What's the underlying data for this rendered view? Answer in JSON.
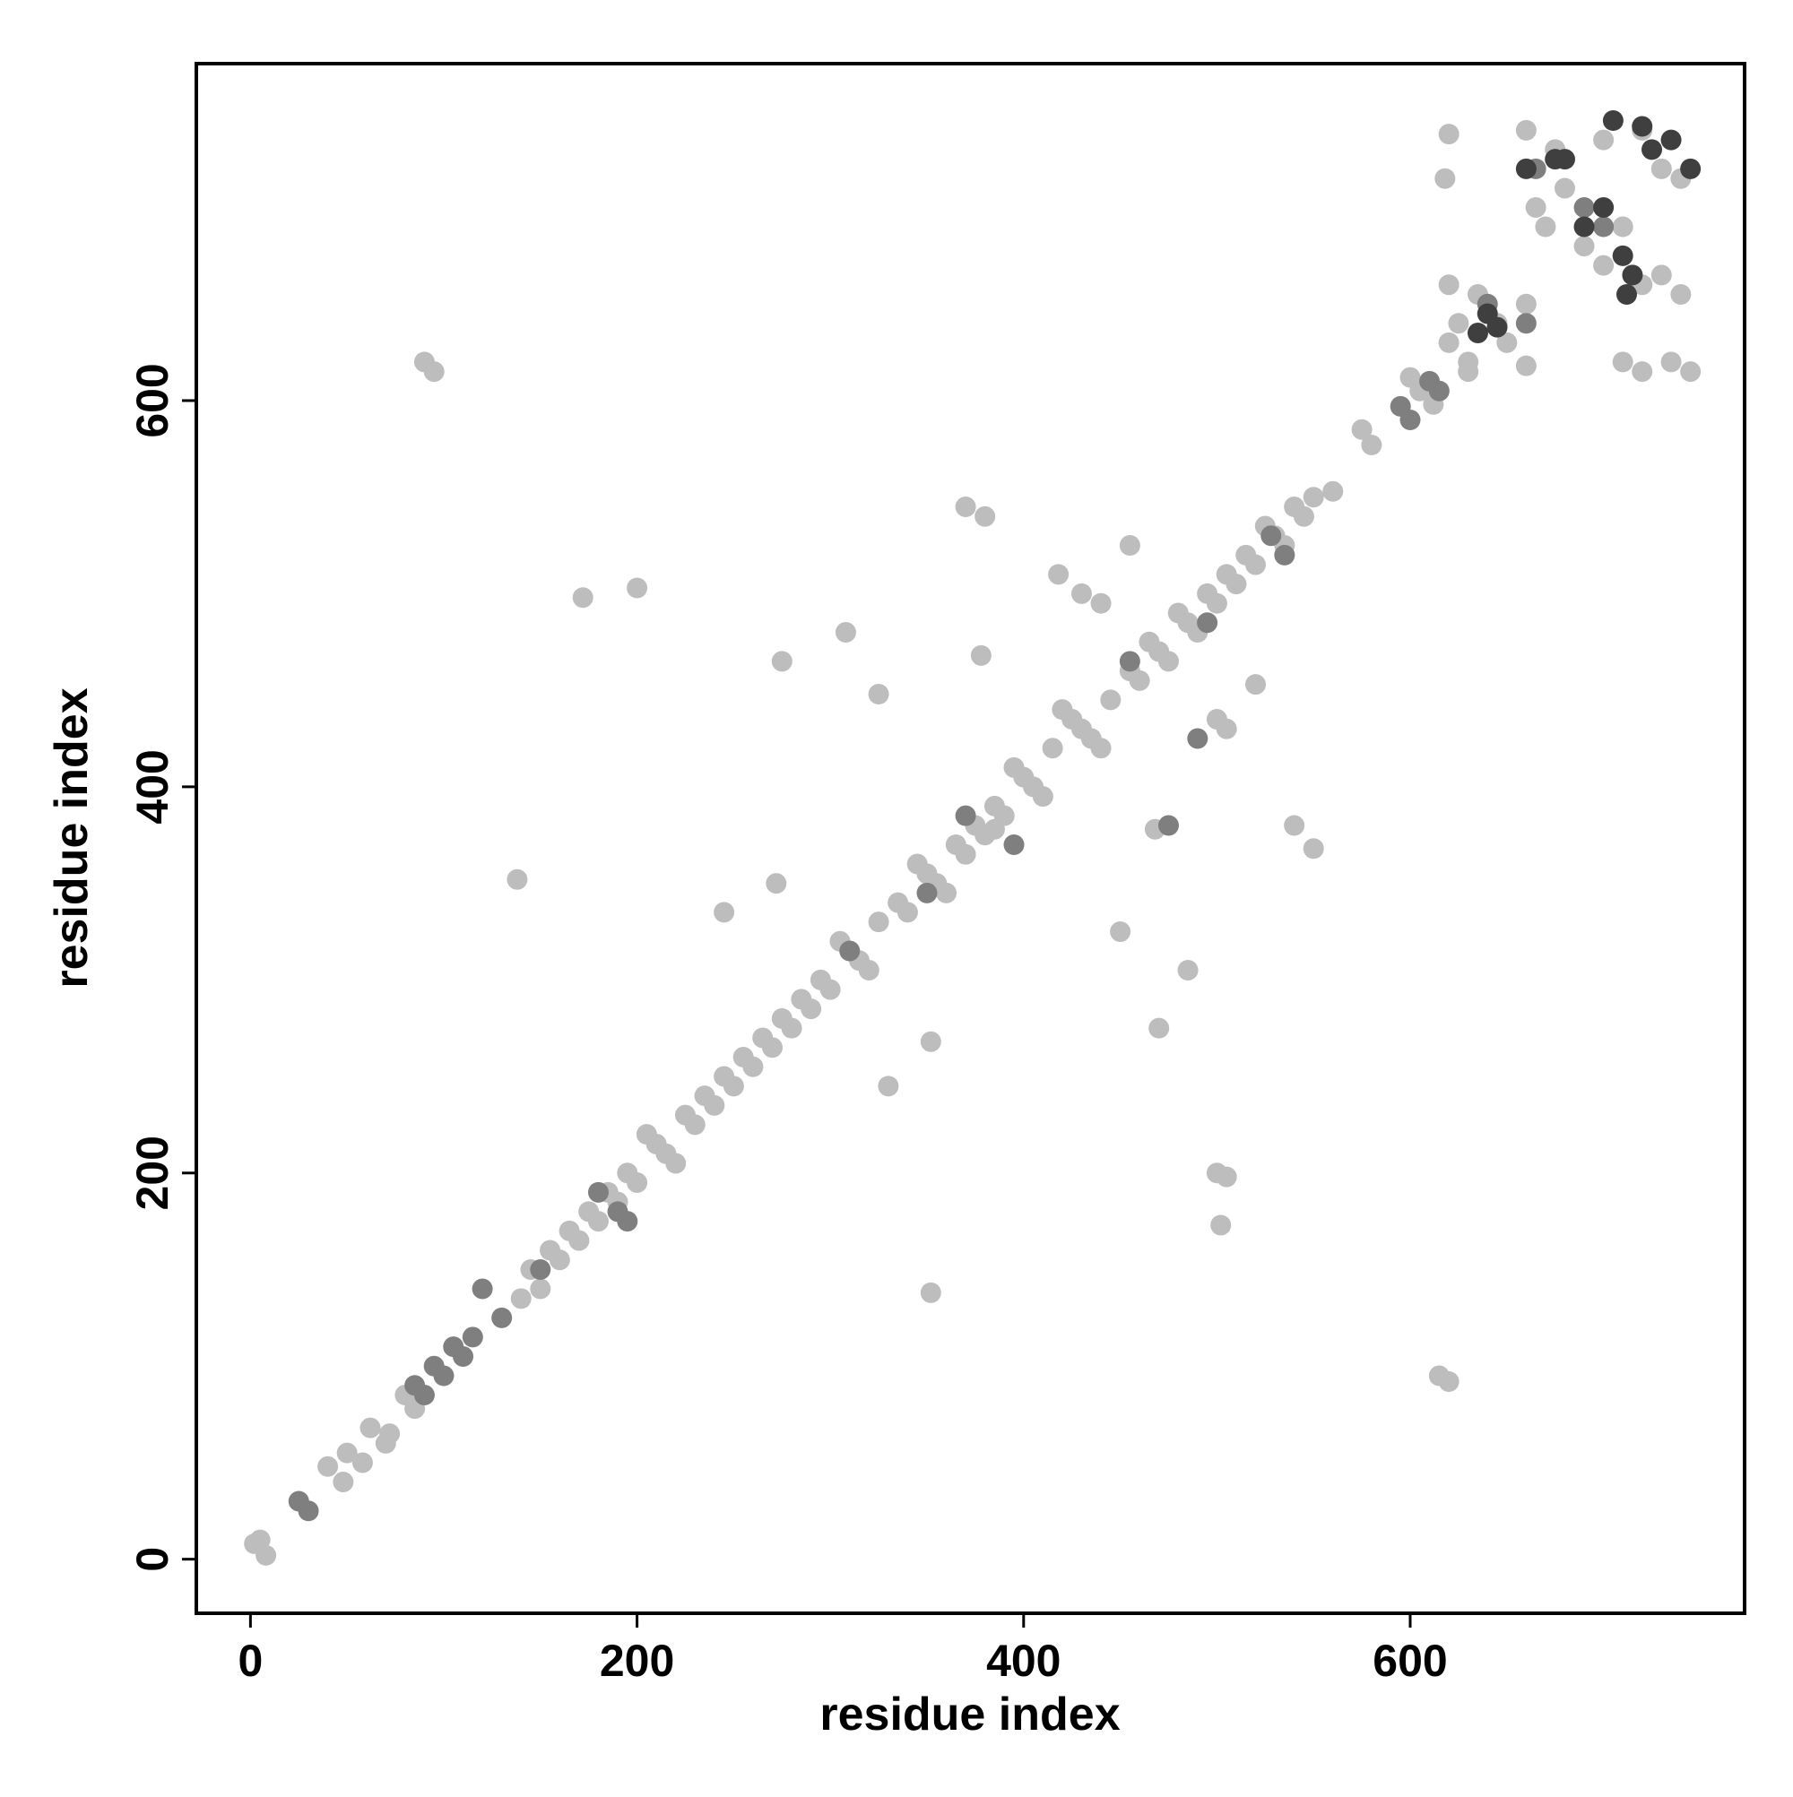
{
  "chart_data": {
    "type": "scatter",
    "xlabel": "residue index",
    "ylabel": "residue index",
    "xlim": [
      -28,
      773
    ],
    "ylim": [
      -28,
      774.5
    ],
    "xticks": [
      0,
      200,
      400,
      600
    ],
    "yticks": [
      0,
      200,
      400,
      600
    ],
    "series": [
      {
        "color": "#bdbdbd",
        "x": [
          2,
          8,
          5,
          40,
          48,
          50,
          58,
          62,
          70,
          72,
          80,
          85,
          140,
          145,
          150,
          155,
          160,
          165,
          170,
          175,
          180,
          185,
          190,
          195,
          200,
          205,
          210,
          215,
          220,
          225,
          230,
          235,
          240,
          245,
          250,
          255,
          260,
          265,
          270,
          275,
          280,
          285,
          290,
          295,
          300,
          305,
          310,
          315,
          320,
          325,
          335,
          340,
          345,
          350,
          355,
          360,
          365,
          370,
          375,
          380,
          385,
          390,
          395,
          400,
          405,
          410,
          415,
          420,
          425,
          430,
          435,
          440,
          445,
          455,
          460,
          465,
          470,
          475,
          480,
          485,
          490,
          495,
          500,
          505,
          510,
          515,
          520,
          525,
          530,
          535,
          540,
          545,
          550,
          560,
          575,
          580,
          600,
          605,
          612,
          620,
          625,
          630,
          635,
          645,
          650,
          660,
          665,
          670,
          680,
          690,
          700,
          710,
          720,
          730,
          740,
          660,
          675,
          700,
          720,
          730,
          740,
          620,
          618,
          620,
          615,
          620,
          90,
          95,
          352,
          138,
          500,
          505,
          200,
          172,
          502,
          380,
          370,
          378,
          468,
          550,
          540,
          330,
          352,
          470,
          485,
          450,
          245,
          272,
          308,
          325,
          275,
          500,
          505,
          520,
          455,
          418,
          430,
          440,
          385,
          710,
          720,
          735,
          745,
          660,
          630
        ],
        "values": [
          8,
          2,
          10,
          48,
          40,
          55,
          50,
          68,
          60,
          65,
          85,
          78,
          135,
          150,
          140,
          160,
          155,
          170,
          165,
          180,
          175,
          190,
          185,
          200,
          195,
          220,
          215,
          210,
          205,
          230,
          225,
          240,
          235,
          250,
          245,
          260,
          255,
          270,
          265,
          280,
          275,
          290,
          285,
          300,
          295,
          320,
          315,
          310,
          305,
          330,
          340,
          335,
          360,
          355,
          350,
          345,
          370,
          365,
          380,
          375,
          390,
          385,
          410,
          405,
          400,
          395,
          420,
          440,
          435,
          430,
          425,
          420,
          445,
          460,
          455,
          475,
          470,
          465,
          490,
          485,
          480,
          500,
          495,
          510,
          505,
          520,
          515,
          535,
          530,
          525,
          545,
          540,
          550,
          553,
          585,
          577,
          612,
          605,
          598,
          630,
          640,
          620,
          655,
          640,
          630,
          650,
          700,
          690,
          710,
          680,
          670,
          690,
          660,
          665,
          655,
          740,
          730,
          735,
          740,
          720,
          715,
          738,
          715,
          660,
          95,
          92,
          620,
          615,
          138,
          352,
          200,
          198,
          503,
          498,
          173,
          540,
          545,
          468,
          378,
          368,
          380,
          245,
          268,
          275,
          305,
          325,
          335,
          350,
          480,
          448,
          465,
          435,
          430,
          453,
          525,
          510,
          500,
          495,
          378,
          620,
          615,
          620,
          615,
          618,
          615
        ]
      },
      {
        "color": "#7f7f7f",
        "x": [
          25,
          30,
          85,
          90,
          95,
          100,
          105,
          110,
          115,
          120,
          130,
          150,
          180,
          190,
          195,
          310,
          350,
          370,
          395,
          455,
          528,
          535,
          595,
          600,
          610,
          615,
          640,
          660,
          490,
          495,
          690,
          700,
          665,
          475
        ],
        "values": [
          30,
          25,
          90,
          85,
          100,
          95,
          110,
          105,
          115,
          140,
          125,
          150,
          190,
          180,
          175,
          315,
          345,
          385,
          370,
          465,
          530,
          520,
          597,
          590,
          610,
          605,
          650,
          640,
          425,
          485,
          700,
          690,
          720,
          380
        ]
      },
      {
        "color": "#3f3f3f",
        "x": [
          635,
          640,
          645,
          660,
          675,
          705,
          720,
          735,
          745,
          710,
          715,
          712,
          700,
          690,
          680,
          725
        ],
        "values": [
          635,
          645,
          638,
          720,
          725,
          745,
          742,
          735,
          720,
          675,
          665,
          655,
          700,
          690,
          725,
          730
        ]
      }
    ]
  }
}
